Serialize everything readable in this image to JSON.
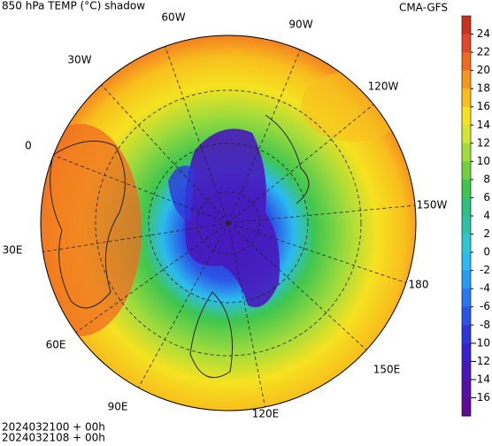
{
  "header": {
    "title": "850 hPa TEMP (°C) shadow",
    "source": "CMA-GFS"
  },
  "map": {
    "lon_labels": [
      "60W",
      "90W",
      "30W",
      "120W",
      "0",
      "150W",
      "30E",
      "180",
      "60E",
      "150E",
      "90E",
      "120E"
    ]
  },
  "colorbar": {
    "ticks": [
      24,
      22,
      20,
      18,
      16,
      14,
      12,
      10,
      8,
      6,
      4,
      2,
      0,
      -2,
      -4,
      -6,
      -8,
      -10,
      -12,
      -14,
      -16
    ],
    "colors": [
      "#c9321f",
      "#e2472a",
      "#f06a22",
      "#f6961f",
      "#f8bf1e",
      "#f6e220",
      "#d2e633",
      "#a2dc3c",
      "#6fd13f",
      "#3fc64e",
      "#2fc07d",
      "#2ec3a9",
      "#2ec8d3",
      "#2bbbef",
      "#2a9bf1",
      "#2a78ef",
      "#2b55e6",
      "#2f37da",
      "#3a22cd",
      "#4818bb",
      "#5510a6",
      "#5e0c96"
    ]
  },
  "footer": {
    "lines": [
      "2024032100 + 00h",
      "2024032108 + 00h"
    ]
  }
}
